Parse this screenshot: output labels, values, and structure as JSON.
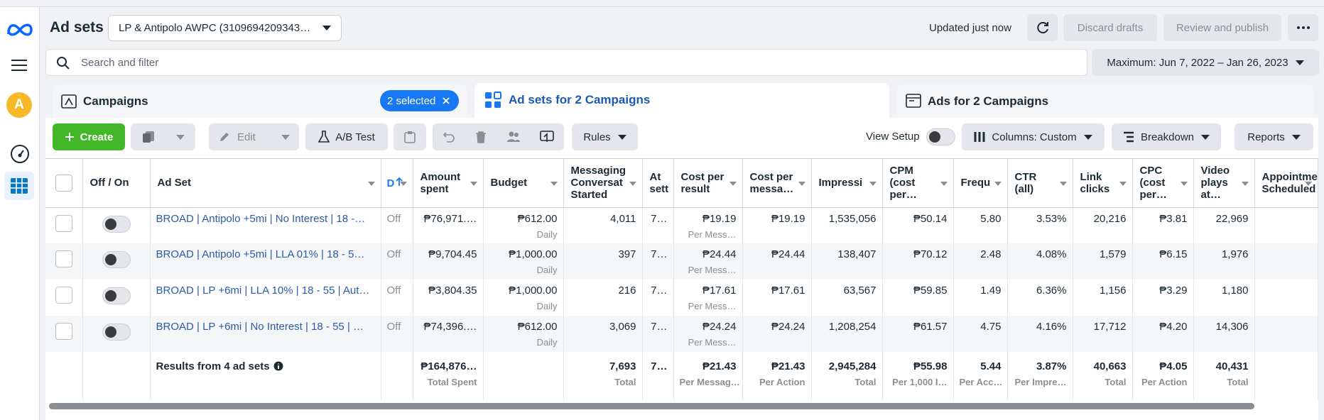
{
  "sidebar": {
    "avatar": "A"
  },
  "header": {
    "title": "Ad sets",
    "account": "LP & Antipolo AWPC (3109694209343…",
    "status": "Updated just now",
    "discard": "Discard drafts",
    "review": "Review and publish"
  },
  "search": {
    "placeholder": "Search and filter",
    "date_range": "Maximum: Jun 7, 2022 – Jan 26, 2023"
  },
  "tabs": {
    "campaigns": "Campaigns",
    "selected": "2 selected",
    "adsets": "Ad sets for 2 Campaigns",
    "ads": "Ads for 2 Campaigns"
  },
  "toolbar": {
    "create": "Create",
    "edit": "Edit",
    "ab_test": "A/B Test",
    "rules": "Rules",
    "view_setup": "View Setup",
    "columns": "Columns: Custom",
    "breakdown": "Breakdown",
    "reports": "Reports"
  },
  "table": {
    "columns": [
      "Off / On",
      "Ad Set",
      "D",
      "Amount spent",
      "Budget",
      "Messaging Conversat Started",
      "At sett",
      "Cost per result",
      "Cost per messa…",
      "Impressi",
      "CPM (cost per…",
      "Frequ",
      "CTR (all)",
      "Link clicks",
      "CPC (cost per…",
      "Video plays at…",
      "Appointmer Scheduled"
    ],
    "rows": [
      {
        "name": "BROAD | Antipolo +5mi | No Interest | 18 -…",
        "delivery": "Off",
        "amount_spent": "₱76,971.…",
        "budget": "₱612.00",
        "budget_sub": "Daily",
        "messaging": "4,011",
        "attribution": "7…",
        "cost_per_result": "₱19.19",
        "cost_per_result_sub": "Per Mess…",
        "cost_per_message": "₱19.19",
        "impressions": "1,535,056",
        "cpm": "₱50.14",
        "frequency": "5.80",
        "ctr": "3.53%",
        "link_clicks": "20,216",
        "cpc": "₱3.81",
        "video_plays": "22,969"
      },
      {
        "name": "BROAD | Antipolo +5mi | LLA 01% | 18 - 5…",
        "delivery": "Off",
        "amount_spent": "₱9,704.45",
        "budget": "₱1,000.00",
        "budget_sub": "Daily",
        "messaging": "397",
        "attribution": "7…",
        "cost_per_result": "₱24.44",
        "cost_per_result_sub": "Per Mess…",
        "cost_per_message": "₱24.44",
        "impressions": "138,407",
        "cpm": "₱70.12",
        "frequency": "2.48",
        "ctr": "4.08%",
        "link_clicks": "1,579",
        "cpc": "₱6.15",
        "video_plays": "1,976"
      },
      {
        "name": "BROAD | LP +6mi | LLA 10% | 18 - 55 | Aut…",
        "delivery": "Off",
        "amount_spent": "₱3,804.35",
        "budget": "₱1,000.00",
        "budget_sub": "Daily",
        "messaging": "216",
        "attribution": "7…",
        "cost_per_result": "₱17.61",
        "cost_per_result_sub": "Per Mess…",
        "cost_per_message": "₱17.61",
        "impressions": "63,567",
        "cpm": "₱59.85",
        "frequency": "1.49",
        "ctr": "6.36%",
        "link_clicks": "1,156",
        "cpc": "₱3.29",
        "video_plays": "1,180"
      },
      {
        "name": "BROAD | LP +6mi | No Interest | 18 - 55 | …",
        "delivery": "Off",
        "amount_spent": "₱74,396.…",
        "budget": "₱612.00",
        "budget_sub": "Daily",
        "messaging": "3,069",
        "attribution": "7…",
        "cost_per_result": "₱24.24",
        "cost_per_result_sub": "Per Mess…",
        "cost_per_message": "₱24.24",
        "impressions": "1,208,254",
        "cpm": "₱61.57",
        "frequency": "4.75",
        "ctr": "4.16%",
        "link_clicks": "17,712",
        "cpc": "₱4.20",
        "video_plays": "14,306"
      }
    ],
    "summary": {
      "name": "Results from 4 ad sets",
      "amount_spent": "₱164,876…",
      "amount_spent_sub": "Total Spent",
      "messaging": "7,693",
      "messaging_sub": "Total",
      "attribution": "7…",
      "cost_per_result": "₱21.43",
      "cost_per_result_sub": "Per Messag…",
      "cost_per_message": "₱21.43",
      "cost_per_message_sub": "Per Action",
      "impressions": "2,945,284",
      "impressions_sub": "Total",
      "cpm": "₱55.98",
      "cpm_sub": "Per 1,000 I…",
      "frequency": "5.44",
      "frequency_sub": "Per Acc…",
      "ctr": "3.87%",
      "ctr_sub": "Per Impre…",
      "link_clicks": "40,663",
      "link_clicks_sub": "Total",
      "cpc": "₱4.05",
      "cpc_sub": "Per Action",
      "video_plays": "40,431",
      "video_plays_sub": "Total"
    }
  }
}
